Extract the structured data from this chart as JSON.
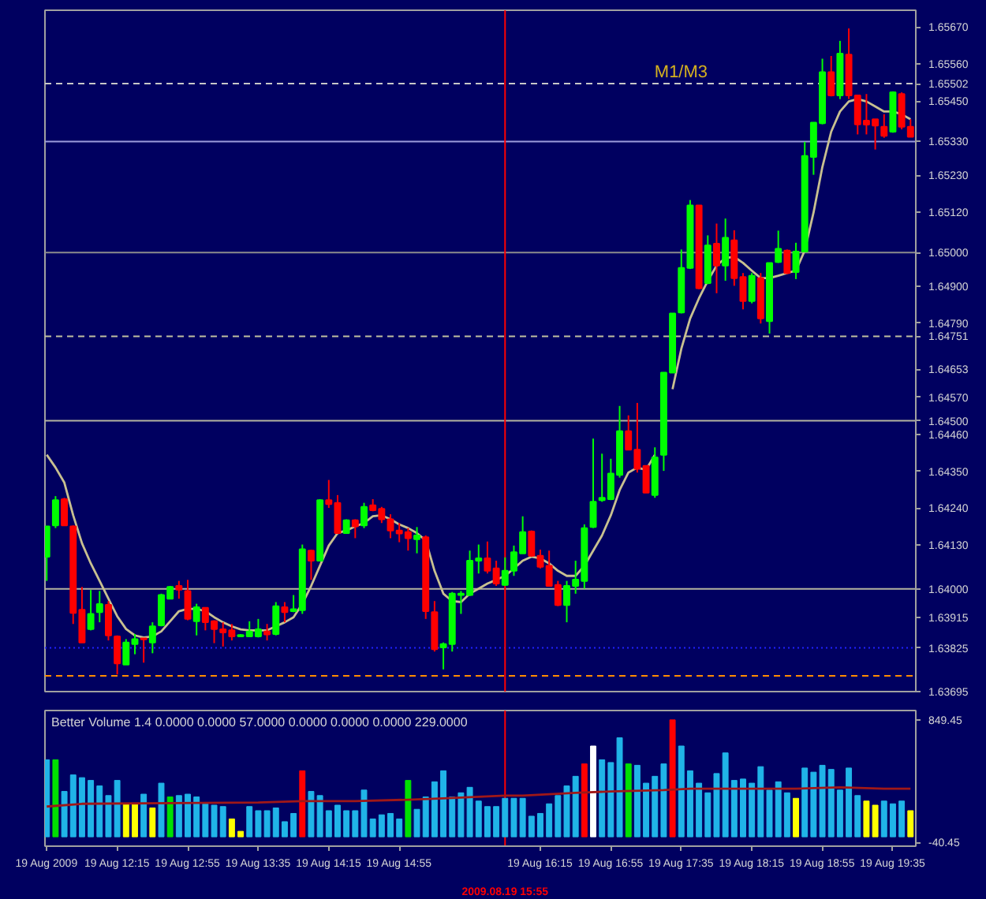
{
  "chart_data": [
    {
      "type": "candlestick",
      "x": [
        "2009-08-19T11:35",
        "2009-08-19T11:40",
        "2009-08-19T11:45",
        "2009-08-19T11:50",
        "2009-08-19T11:55",
        "2009-08-19T12:00",
        "2009-08-19T12:05",
        "2009-08-19T12:10",
        "2009-08-19T12:15",
        "2009-08-19T12:20",
        "2009-08-19T12:25",
        "2009-08-19T12:30",
        "2009-08-19T12:35",
        "2009-08-19T12:40",
        "2009-08-19T12:45",
        "2009-08-19T12:50",
        "2009-08-19T12:55",
        "2009-08-19T13:00",
        "2009-08-19T13:05",
        "2009-08-19T13:10",
        "2009-08-19T13:15",
        "2009-08-19T13:20",
        "2009-08-19T13:25",
        "2009-08-19T13:30",
        "2009-08-19T13:35",
        "2009-08-19T13:40",
        "2009-08-19T13:45",
        "2009-08-19T13:50",
        "2009-08-19T13:55",
        "2009-08-19T14:00",
        "2009-08-19T14:05",
        "2009-08-19T14:10",
        "2009-08-19T14:15",
        "2009-08-19T14:20",
        "2009-08-19T14:25",
        "2009-08-19T14:30",
        "2009-08-19T14:35",
        "2009-08-19T14:40",
        "2009-08-19T14:45",
        "2009-08-19T14:50",
        "2009-08-19T14:55",
        "2009-08-19T15:00",
        "2009-08-19T15:05",
        "2009-08-19T15:10",
        "2009-08-19T15:15",
        "2009-08-19T15:20",
        "2009-08-19T15:25",
        "2009-08-19T15:30",
        "2009-08-19T15:35",
        "2009-08-19T15:40",
        "2009-08-19T15:45",
        "2009-08-19T15:50",
        "2009-08-19T15:55",
        "2009-08-19T16:00",
        "2009-08-19T16:05",
        "2009-08-19T16:10",
        "2009-08-19T16:15",
        "2009-08-19T16:20",
        "2009-08-19T16:25",
        "2009-08-19T16:30",
        "2009-08-19T16:35",
        "2009-08-19T16:40",
        "2009-08-19T16:45",
        "2009-08-19T16:50",
        "2009-08-19T16:55",
        "2009-08-19T17:00",
        "2009-08-19T17:05",
        "2009-08-19T17:10",
        "2009-08-19T17:15",
        "2009-08-19T17:20",
        "2009-08-19T17:25",
        "2009-08-19T17:30",
        "2009-08-19T17:35",
        "2009-08-19T17:40",
        "2009-08-19T17:45",
        "2009-08-19T17:50",
        "2009-08-19T17:55",
        "2009-08-19T18:00",
        "2009-08-19T18:05",
        "2009-08-19T18:10",
        "2009-08-19T18:15",
        "2009-08-19T18:20",
        "2009-08-19T18:25",
        "2009-08-19T18:30",
        "2009-08-19T18:35",
        "2009-08-19T18:40",
        "2009-08-19T18:45",
        "2009-08-19T18:50",
        "2009-08-19T18:55",
        "2009-08-19T19:00",
        "2009-08-19T19:05",
        "2009-08-19T19:10",
        "2009-08-19T19:15",
        "2009-08-19T19:20",
        "2009-08-19T19:25",
        "2009-08-19T19:30",
        "2009-08-19T19:35",
        "2009-08-19T19:40",
        "2009-08-19T19:45"
      ],
      "ohlc": [
        [
          1.64096,
          1.64186,
          1.64024,
          1.64186
        ],
        [
          1.64189,
          1.64276,
          1.64181,
          1.64264
        ],
        [
          1.64267,
          1.64271,
          1.64189,
          1.64189
        ],
        [
          1.64186,
          1.64189,
          1.63896,
          1.63929
        ],
        [
          1.63938,
          1.64006,
          1.63841,
          1.63841
        ],
        [
          1.63881,
          1.63997,
          1.63877,
          1.63926
        ],
        [
          1.63931,
          1.63994,
          1.63901,
          1.63955
        ],
        [
          1.63953,
          1.63964,
          1.63847,
          1.63862
        ],
        [
          1.63859,
          1.63862,
          1.63746,
          1.63779
        ],
        [
          1.63775,
          1.63851,
          1.63775,
          1.63841
        ],
        [
          1.63836,
          1.63866,
          1.63806,
          1.63851
        ],
        [
          1.63853,
          1.63853,
          1.63781,
          1.6385
        ],
        [
          1.63841,
          1.63901,
          1.63809,
          1.63889
        ],
        [
          1.63892,
          1.63986,
          1.63889,
          1.63982
        ],
        [
          1.63971,
          1.64009,
          1.6397,
          1.64006
        ],
        [
          1.64009,
          1.64024,
          1.63971,
          1.63998
        ],
        [
          1.63994,
          1.64027,
          1.63907,
          1.63911
        ],
        [
          1.63904,
          1.63956,
          1.63862,
          1.63946
        ],
        [
          1.63944,
          1.63944,
          1.63877,
          1.63901
        ],
        [
          1.63904,
          1.63907,
          1.63839,
          1.63881
        ],
        [
          1.6388,
          1.63901,
          1.63829,
          1.63871
        ],
        [
          1.63877,
          1.63896,
          1.63847,
          1.63859
        ],
        [
          1.63859,
          1.63866,
          1.63859,
          1.63863
        ],
        [
          1.63859,
          1.63904,
          1.63859,
          1.63874
        ],
        [
          1.63859,
          1.63911,
          1.63856,
          1.6388
        ],
        [
          1.63874,
          1.63896,
          1.63847,
          1.63865
        ],
        [
          1.63866,
          1.63961,
          1.63862,
          1.63949
        ],
        [
          1.63946,
          1.63961,
          1.63901,
          1.63931
        ],
        [
          1.63934,
          1.63982,
          1.63931,
          1.6394
        ],
        [
          1.63937,
          1.64132,
          1.63926,
          1.64118
        ],
        [
          1.64114,
          1.64117,
          1.64027,
          1.64084
        ],
        [
          1.64084,
          1.64267,
          1.64084,
          1.64264
        ],
        [
          1.64264,
          1.64324,
          1.64241,
          1.64252
        ],
        [
          1.64256,
          1.64279,
          1.64166,
          1.64166
        ],
        [
          1.64166,
          1.64207,
          1.64166,
          1.64204
        ],
        [
          1.64204,
          1.64207,
          1.64151,
          1.64186
        ],
        [
          1.64189,
          1.64256,
          1.64181,
          1.64244
        ],
        [
          1.64249,
          1.64267,
          1.64231,
          1.64234
        ],
        [
          1.64238,
          1.64244,
          1.64196,
          1.64207
        ],
        [
          1.64207,
          1.64222,
          1.64151,
          1.64174
        ],
        [
          1.64174,
          1.64196,
          1.64139,
          1.64165
        ],
        [
          1.64169,
          1.64181,
          1.64114,
          1.64151
        ],
        [
          1.64148,
          1.64184,
          1.64106,
          1.64159
        ],
        [
          1.64154,
          1.64159,
          1.63911,
          1.63934
        ],
        [
          1.63931,
          1.63964,
          1.63814,
          1.63821
        ],
        [
          1.63826,
          1.63841,
          1.63761,
          1.63836
        ],
        [
          1.63836,
          1.63991,
          1.63814,
          1.63986
        ],
        [
          1.63982,
          1.63994,
          1.63926,
          1.63986
        ],
        [
          1.63982,
          1.64114,
          1.63979,
          1.64084
        ],
        [
          1.64084,
          1.64132,
          1.64046,
          1.64091
        ],
        [
          1.64091,
          1.64141,
          1.64046,
          1.64054
        ],
        [
          1.64061,
          1.64084,
          1.64009,
          1.64016
        ],
        [
          1.64012,
          1.64094,
          1.64009,
          1.64054
        ],
        [
          1.64054,
          1.64129,
          1.64039,
          1.64109
        ],
        [
          1.64106,
          1.64216,
          1.64106,
          1.64169
        ],
        [
          1.64171,
          1.64174,
          1.64096,
          1.64099
        ],
        [
          1.64099,
          1.64117,
          1.64061,
          1.64066
        ],
        [
          1.64069,
          1.64114,
          1.64009,
          1.64009
        ],
        [
          1.64012,
          1.64024,
          1.63949,
          1.63952
        ],
        [
          1.63952,
          1.64024,
          1.63901,
          1.64009
        ],
        [
          1.64009,
          1.64084,
          1.63986,
          1.64028
        ],
        [
          1.64024,
          1.64192,
          1.64001,
          1.64181
        ],
        [
          1.64184,
          1.64447,
          1.64181,
          1.64259
        ],
        [
          1.64264,
          1.64402,
          1.64259,
          1.64271
        ],
        [
          1.64267,
          1.64387,
          1.64264,
          1.64343
        ],
        [
          1.64339,
          1.64544,
          1.64331,
          1.64469
        ],
        [
          1.64469,
          1.64516,
          1.64414,
          1.64414
        ],
        [
          1.64414,
          1.64553,
          1.64346,
          1.64357
        ],
        [
          1.64366,
          1.64366,
          1.64286,
          1.64286
        ],
        [
          1.64279,
          1.64421,
          1.64271,
          1.64391
        ],
        [
          1.64399,
          1.64643,
          1.64351,
          1.64643
        ],
        [
          1.64643,
          1.64819,
          1.64643,
          1.64819
        ],
        [
          1.64822,
          1.65009,
          1.64819,
          1.64954
        ],
        [
          1.64954,
          1.65156,
          1.64951,
          1.6514
        ],
        [
          1.6514,
          1.6514,
          1.64891,
          1.64894
        ],
        [
          1.64909,
          1.65051,
          1.64906,
          1.65021
        ],
        [
          1.65026,
          1.65086,
          1.64879,
          1.64961
        ],
        [
          1.64961,
          1.65101,
          1.64916,
          1.65044
        ],
        [
          1.65036,
          1.65066,
          1.64901,
          1.64924
        ],
        [
          1.64927,
          1.64939,
          1.64831,
          1.64856
        ],
        [
          1.64856,
          1.64939,
          1.64849,
          1.64931
        ],
        [
          1.64924,
          1.64939,
          1.64789,
          1.64804
        ],
        [
          1.64796,
          1.64969,
          1.64759,
          1.64969
        ],
        [
          1.64972,
          1.65065,
          1.64969,
          1.65011
        ],
        [
          1.65006,
          1.65009,
          1.64936,
          1.64939
        ],
        [
          1.64942,
          1.65029,
          1.64921,
          1.65003
        ],
        [
          1.65003,
          1.65329,
          1.65003,
          1.65287
        ],
        [
          1.65284,
          1.65386,
          1.65231,
          1.65386
        ],
        [
          1.65384,
          1.65576,
          1.65381,
          1.65536
        ],
        [
          1.65536,
          1.65584,
          1.65464,
          1.65467
        ],
        [
          1.65467,
          1.65629,
          1.65456,
          1.65591
        ],
        [
          1.65588,
          1.65666,
          1.65456,
          1.65467
        ],
        [
          1.65467,
          1.65467,
          1.65351,
          1.65381
        ],
        [
          1.65392,
          1.65471,
          1.65351,
          1.6538
        ],
        [
          1.65396,
          1.65396,
          1.65306,
          1.65377
        ],
        [
          1.65374,
          1.65411,
          1.65341,
          1.65347
        ],
        [
          1.65359,
          1.65479,
          1.65356,
          1.65476
        ],
        [
          1.65471,
          1.65476,
          1.65366,
          1.65374
        ],
        [
          1.65374,
          1.65396,
          1.65344,
          1.65344
        ]
      ],
      "colors": [
        "#00ff00",
        "#00ff00",
        "#ff0000",
        "#ff0000",
        "#ff0000",
        "#00ff00",
        "#00ff00",
        "#ff0000",
        "#ff0000",
        "#00ff00",
        "#00ff00",
        "#ff0000",
        "#00ff00",
        "#00ff00",
        "#00ff00",
        "#ff0000",
        "#ff0000",
        "#00ff00",
        "#ff0000",
        "#ff0000",
        "#ff0000",
        "#ff0000",
        "#00ff00",
        "#00ff00",
        "#00ff00",
        "#ff0000",
        "#00ff00",
        "#ff0000",
        "#00ff00",
        "#00ff00",
        "#ff0000",
        "#00ff00",
        "#ff0000",
        "#ff0000",
        "#00ff00",
        "#ff0000",
        "#00ff00",
        "#ff0000",
        "#ff0000",
        "#ff0000",
        "#ff0000",
        "#ff0000",
        "#00ff00",
        "#ff0000",
        "#ff0000",
        "#00ff00",
        "#00ff00",
        "#00ff00",
        "#00ff00",
        "#00ff00",
        "#ff0000",
        "#ff0000",
        "#00ff00",
        "#00ff00",
        "#00ff00",
        "#ff0000",
        "#ff0000",
        "#ff0000",
        "#ff0000",
        "#00ff00",
        "#00ff00",
        "#00ff00",
        "#00ff00",
        "#00ff00",
        "#00ff00",
        "#00ff00",
        "#ff0000",
        "#ff0000",
        "#ff0000",
        "#00ff00",
        "#00ff00",
        "#00ff00",
        "#00ff00",
        "#00ff00",
        "#ff0000",
        "#00ff00",
        "#ff0000",
        "#00ff00",
        "#ff0000",
        "#ff0000",
        "#00ff00",
        "#ff0000",
        "#00ff00",
        "#00ff00",
        "#ff0000",
        "#00ff00",
        "#00ff00",
        "#00ff00",
        "#00ff00",
        "#ff0000",
        "#00ff00",
        "#ff0000",
        "#ff0000",
        "#ff0000",
        "#ff0000",
        "#ff0000",
        "#00ff00",
        "#ff0000",
        "#ff0000"
      ],
      "series": [
        {
          "type": "line",
          "color": "#c8c090",
          "values": [
            1.64399,
            1.64361,
            1.64316,
            1.64219,
            1.64136,
            1.64076,
            1.64024,
            1.63971,
            1.63919,
            1.63881,
            1.63862,
            1.63856,
            1.63859,
            1.63874,
            1.63904,
            1.63934,
            1.63941,
            1.63941,
            1.63934,
            1.63916,
            1.63901,
            1.63889,
            1.6388,
            1.63877,
            1.63877,
            1.63877,
            1.63889,
            1.63901,
            1.63916,
            1.63956,
            1.64009,
            1.64069,
            1.64129,
            1.64166,
            1.64174,
            1.64186,
            1.64196,
            1.64216,
            1.64219,
            1.64207,
            1.64192,
            1.64181,
            1.64166,
            1.64144,
            1.64054,
            1.63986,
            1.63964,
            1.63961,
            1.63986,
            1.64001,
            1.64016,
            1.64027,
            1.64039,
            1.64061,
            1.64084,
            1.64096,
            1.64091,
            1.64076,
            1.64054,
            1.64039,
            1.64039,
            1.64069,
            1.64114,
            1.64159,
            1.64219,
            1.64294,
            1.64346,
            1.64361,
            1.64354,
            1.64399,
            null,
            1.64594,
            1.64714,
            1.64804,
            1.64864,
            1.64916,
            1.64961,
            1.64984,
            1.64987,
            1.64969,
            1.64946,
            1.64924,
            1.64924,
            1.64931,
            1.64939,
            1.64946,
            1.65006,
            1.65119,
            1.65254,
            1.65359,
            1.65419,
            1.65449,
            1.65456,
            1.65449,
            1.65434,
            1.65419,
            1.65419,
            1.65411,
            1.65396
          ]
        }
      ],
      "xlim": [
        "2009-08-19T11:34",
        "2009-08-19T19:48"
      ],
      "ylim": [
        1.63695,
        1.6572
      ],
      "yticks": [
        {
          "value": 1.6567,
          "label": "1.65670"
        },
        {
          "value": 1.6556,
          "label": "1.65560"
        },
        1.65502,
        {
          "value": 1.6545,
          "label": "1.65450"
        },
        {
          "value": 1.6533,
          "label": "1.65330"
        },
        {
          "value": 1.6523,
          "label": "1.65230"
        },
        {
          "value": 1.6512,
          "label": "1.65120"
        },
        {
          "value": 1.65,
          "label": "1.65000"
        },
        {
          "value": 1.649,
          "label": "1.64900"
        },
        {
          "value": 1.6479,
          "label": "1.64790"
        },
        1.64751,
        1.64653,
        {
          "value": 1.6457,
          "label": "1.64570"
        },
        {
          "value": 1.645,
          "label": "1.64500"
        },
        {
          "value": 1.6446,
          "label": "1.64460"
        },
        {
          "value": 1.6435,
          "label": "1.64350"
        },
        {
          "value": 1.6424,
          "label": "1.64240"
        },
        {
          "value": 1.6413,
          "label": "1.64130"
        },
        {
          "value": 1.64,
          "label": "1.64000"
        },
        1.63915,
        1.63825,
        1.63695
      ],
      "ref_lines": [
        {
          "axis": "y",
          "value": 1.65502,
          "label": "M1/M3",
          "color": "#c8c8c8",
          "line_style": "dashed"
        },
        {
          "axis": "y",
          "value": 1.6533,
          "color": "#9c9cdc",
          "line_style": "solid"
        },
        {
          "axis": "y",
          "value": 1.65,
          "color": "#8c8c8c",
          "line_style": "solid"
        },
        {
          "axis": "y",
          "value": 1.64751,
          "color": "#c0c0a0",
          "line_style": "dashed"
        },
        {
          "axis": "y",
          "value": 1.645,
          "color": "#b4b4a0",
          "line_style": "solid"
        },
        {
          "axis": "y",
          "value": 1.64,
          "color": "#b4b4a0",
          "line_style": "solid"
        },
        {
          "axis": "y",
          "value": 1.63825,
          "color": "#2020ff",
          "line_style": "dotted"
        },
        {
          "axis": "y",
          "value": 1.63742,
          "color": "#ff8c00",
          "line_style": "dashed"
        },
        {
          "axis": "x",
          "value": "2009-08-19T15:55",
          "color": "#ff0000",
          "line_style": "solid"
        }
      ],
      "grid": false,
      "tick_labels": "y"
    },
    {
      "type": "bar",
      "x": [
        "2009-08-19T11:35",
        "2009-08-19T11:40",
        "2009-08-19T11:45",
        "2009-08-19T11:50",
        "2009-08-19T11:55",
        "2009-08-19T12:00",
        "2009-08-19T12:05",
        "2009-08-19T12:10",
        "2009-08-19T12:15",
        "2009-08-19T12:20",
        "2009-08-19T12:25",
        "2009-08-19T12:30",
        "2009-08-19T12:35",
        "2009-08-19T12:40",
        "2009-08-19T12:45",
        "2009-08-19T12:50",
        "2009-08-19T12:55",
        "2009-08-19T13:00",
        "2009-08-19T13:05",
        "2009-08-19T13:10",
        "2009-08-19T13:15",
        "2009-08-19T13:20",
        "2009-08-19T13:25",
        "2009-08-19T13:30",
        "2009-08-19T13:35",
        "2009-08-19T13:40",
        "2009-08-19T13:45",
        "2009-08-19T13:50",
        "2009-08-19T13:55",
        "2009-08-19T14:00",
        "2009-08-19T14:05",
        "2009-08-19T14:10",
        "2009-08-19T14:15",
        "2009-08-19T14:20",
        "2009-08-19T14:25",
        "2009-08-19T14:30",
        "2009-08-19T14:35",
        "2009-08-19T14:40",
        "2009-08-19T14:45",
        "2009-08-19T14:50",
        "2009-08-19T14:55",
        "2009-08-19T15:00",
        "2009-08-19T15:05",
        "2009-08-19T15:10",
        "2009-08-19T15:15",
        "2009-08-19T15:20",
        "2009-08-19T15:25",
        "2009-08-19T15:30",
        "2009-08-19T15:35",
        "2009-08-19T15:40",
        "2009-08-19T15:45",
        "2009-08-19T15:50",
        "2009-08-19T15:55",
        "2009-08-19T16:00",
        "2009-08-19T16:05",
        "2009-08-19T16:10",
        "2009-08-19T16:15",
        "2009-08-19T16:20",
        "2009-08-19T16:25",
        "2009-08-19T16:30",
        "2009-08-19T16:35",
        "2009-08-19T16:40",
        "2009-08-19T16:45",
        "2009-08-19T16:50",
        "2009-08-19T16:55",
        "2009-08-19T17:00",
        "2009-08-19T17:05",
        "2009-08-19T17:10",
        "2009-08-19T17:15",
        "2009-08-19T17:20",
        "2009-08-19T17:25",
        "2009-08-19T17:30",
        "2009-08-19T17:35",
        "2009-08-19T17:40",
        "2009-08-19T17:45",
        "2009-08-19T17:50",
        "2009-08-19T17:55",
        "2009-08-19T18:00",
        "2009-08-19T18:05",
        "2009-08-19T18:10",
        "2009-08-19T18:15",
        "2009-08-19T18:20",
        "2009-08-19T18:25",
        "2009-08-19T18:30",
        "2009-08-19T18:35",
        "2009-08-19T18:40",
        "2009-08-19T18:45",
        "2009-08-19T18:50",
        "2009-08-19T18:55",
        "2009-08-19T19:00",
        "2009-08-19T19:05",
        "2009-08-19T19:10",
        "2009-08-19T19:15",
        "2009-08-19T19:20",
        "2009-08-19T19:25",
        "2009-08-19T19:30",
        "2009-08-19T19:35",
        "2009-08-19T19:40",
        "2009-08-19T19:45"
      ],
      "series": [
        {
          "type": "bar",
          "values": [
            560,
            560,
            330,
            450,
            430,
            410,
            370,
            300,
            410,
            240,
            240,
            310,
            210,
            390,
            290,
            300,
            310,
            290,
            240,
            230,
            220,
            130,
            40,
            220,
            190,
            190,
            210,
            110,
            170,
            480,
            330,
            300,
            190,
            230,
            190,
            190,
            340,
            130,
            160,
            170,
            130,
            410,
            200,
            290,
            400,
            480,
            290,
            320,
            360,
            260,
            220,
            220,
            280,
            280,
            280,
            150,
            170,
            240,
            300,
            370,
            440,
            530,
            660,
            560,
            540,
            720,
            530,
            520,
            390,
            440,
            530,
            850,
            660,
            480,
            390,
            320,
            460,
            610,
            410,
            420,
            390,
            510,
            340,
            400,
            320,
            280,
            500,
            470,
            520,
            490,
            340,
            500,
            300,
            260,
            230,
            260,
            240,
            260,
            190
          ],
          "colors": [
            "#20b4e8",
            "#00e000",
            "#20b4e8",
            "#20b4e8",
            "#20b4e8",
            "#20b4e8",
            "#20b4e8",
            "#20b4e8",
            "#20b4e8",
            "#ffff00",
            "#ffff00",
            "#20b4e8",
            "#ffff00",
            "#20b4e8",
            "#00e000",
            "#20b4e8",
            "#20b4e8",
            "#20b4e8",
            "#20b4e8",
            "#20b4e8",
            "#20b4e8",
            "#ffff00",
            "#ffff00",
            "#20b4e8",
            "#20b4e8",
            "#20b4e8",
            "#20b4e8",
            "#20b4e8",
            "#20b4e8",
            "#ff0000",
            "#20b4e8",
            "#20b4e8",
            "#20b4e8",
            "#20b4e8",
            "#20b4e8",
            "#20b4e8",
            "#20b4e8",
            "#20b4e8",
            "#20b4e8",
            "#20b4e8",
            "#20b4e8",
            "#00e000",
            "#20b4e8",
            "#20b4e8",
            "#20b4e8",
            "#20b4e8",
            "#20b4e8",
            "#20b4e8",
            "#20b4e8",
            "#20b4e8",
            "#20b4e8",
            "#20b4e8",
            "#20b4e8",
            "#20b4e8",
            "#20b4e8",
            "#20b4e8",
            "#20b4e8",
            "#20b4e8",
            "#20b4e8",
            "#20b4e8",
            "#20b4e8",
            "#ff0000",
            "#ffffff",
            "#20b4e8",
            "#20b4e8",
            "#20b4e8",
            "#00e000",
            "#20b4e8",
            "#20b4e8",
            "#20b4e8",
            "#20b4e8",
            "#ff0000",
            "#20b4e8",
            "#20b4e8",
            "#20b4e8",
            "#20b4e8",
            "#20b4e8",
            "#20b4e8",
            "#20b4e8",
            "#20b4e8",
            "#20b4e8",
            "#20b4e8",
            "#20b4e8",
            "#20b4e8",
            "#20b4e8",
            "#ffff00",
            "#20b4e8",
            "#20b4e8",
            "#20b4e8",
            "#20b4e8",
            "#20b4e8",
            "#20b4e8",
            "#20b4e8",
            "#ffff00",
            "#ffff00",
            "#20b4e8",
            "#20b4e8",
            "#20b4e8",
            "#ffff00"
          ]
        },
        {
          "type": "line",
          "color": "#a01818",
          "x": [
            "2009-08-19T11:35",
            "2009-08-19T11:55",
            "2009-08-19T13:35",
            "2009-08-19T14:00",
            "2009-08-19T14:30",
            "2009-08-19T15:00",
            "2009-08-19T15:20",
            "2009-08-19T15:55",
            "2009-08-19T16:05",
            "2009-08-19T16:35",
            "2009-08-19T16:55",
            "2009-08-19T17:25",
            "2009-08-19T17:40",
            "2009-08-19T18:40",
            "2009-08-19T19:05",
            "2009-08-19T19:30",
            "2009-08-19T19:45"
          ],
          "values": [
            220,
            240,
            250,
            260,
            260,
            270,
            280,
            300,
            300,
            320,
            330,
            340,
            350,
            350,
            360,
            350,
            350
          ]
        }
      ],
      "xlim": [
        "2009-08-19T11:34",
        "2009-08-19T19:48"
      ],
      "xticks": [
        {
          "value": "2009-08-19T11:35",
          "label": "19 Aug 2009"
        },
        {
          "value": "2009-08-19T12:15",
          "label": "19 Aug 12:15"
        },
        {
          "value": "2009-08-19T12:55",
          "label": "19 Aug 12:55"
        },
        {
          "value": "2009-08-19T13:35",
          "label": "19 Aug 13:35"
        },
        {
          "value": "2009-08-19T14:15",
          "label": "19 Aug 14:15"
        },
        {
          "value": "2009-08-19T14:55",
          "label": "19 Aug 14:55"
        },
        {
          "value": "2009-08-19T16:15",
          "label": "19 Aug 16:15"
        },
        {
          "value": "2009-08-19T16:55",
          "label": "19 Aug 16:55"
        },
        {
          "value": "2009-08-19T17:35",
          "label": "19 Aug 17:35"
        },
        {
          "value": "2009-08-19T18:15",
          "label": "19 Aug 18:15"
        },
        {
          "value": "2009-08-19T18:55",
          "label": "19 Aug 18:55"
        },
        {
          "value": "2009-08-19T19:35",
          "label": "19 Aug 19:35"
        }
      ],
      "ylim": [
        -68,
        918
      ],
      "yticks": [
        -40.45,
        849.45
      ],
      "ref_lines": [
        {
          "axis": "x",
          "value": "2009-08-19T15:55",
          "label": "2009.08.19 15:55",
          "color": "#ff0000",
          "line_style": "solid"
        }
      ],
      "annotations": [
        "Better Volume 1.4 0.0000 0.0000 57.0000 0.0000 0.0000 0.0000 229.0000"
      ],
      "grid": false
    }
  ]
}
